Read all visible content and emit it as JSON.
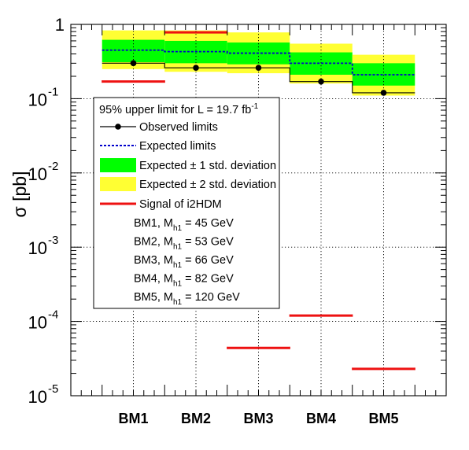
{
  "chart_data": {
    "type": "bar",
    "ylabel": "σ [pb]",
    "yscale": "log",
    "ylim": [
      1e-05,
      1
    ],
    "grid": true,
    "legend_position": "upper-left",
    "categories": [
      "BM1",
      "BM2",
      "BM3",
      "BM4",
      "BM5"
    ],
    "y_ticks": [
      {
        "base": "10",
        "exp": "-5",
        "value": 1e-05
      },
      {
        "base": "10",
        "exp": "-4",
        "value": 0.0001
      },
      {
        "base": "10",
        "exp": "-3",
        "value": 0.001
      },
      {
        "base": "10",
        "exp": "-2",
        "value": 0.01
      },
      {
        "base": "10",
        "exp": "-1",
        "value": 0.1
      },
      {
        "base": "1",
        "exp": "",
        "value": 1
      }
    ],
    "series": [
      {
        "key": "observed",
        "name": "Observed limits",
        "values": [
          0.3,
          0.26,
          0.26,
          0.17,
          0.12
        ],
        "color": "#000000"
      },
      {
        "key": "expected",
        "name": "Expected limits",
        "values": [
          0.45,
          0.43,
          0.41,
          0.3,
          0.21
        ],
        "color": "#0000cc"
      },
      {
        "key": "band1",
        "name": "Expected ± 1 std. deviation",
        "low": [
          0.31,
          0.3,
          0.29,
          0.21,
          0.15
        ],
        "high": [
          0.62,
          0.6,
          0.57,
          0.42,
          0.3
        ],
        "color": "#00ff00"
      },
      {
        "key": "band2",
        "name": "Expected ± 2 std. deviation",
        "low": [
          0.25,
          0.23,
          0.22,
          0.16,
          0.11
        ],
        "high": [
          0.83,
          0.83,
          0.78,
          0.55,
          0.39
        ],
        "color": "#ffff33"
      },
      {
        "key": "signal",
        "name": "Signal of i2HDM",
        "values": [
          0.17,
          0.78,
          4.4e-05,
          0.00012,
          2.3e-05
        ],
        "color": "#ee1111"
      }
    ],
    "legend": {
      "title_prefix": "95% upper limit for L = 19.7 fb",
      "title_sup": "-1",
      "benchmarks": [
        {
          "prefix": "BM1, M",
          "sub": "h1",
          "suffix": " = 45 GeV"
        },
        {
          "prefix": "BM2, M",
          "sub": "h1",
          "suffix": " = 53 GeV"
        },
        {
          "prefix": "BM3, M",
          "sub": "h1",
          "suffix": " = 66 GeV"
        },
        {
          "prefix": "BM4, M",
          "sub": "h1",
          "suffix": " = 82 GeV"
        },
        {
          "prefix": "BM5, M",
          "sub": "h1",
          "suffix": " = 120 GeV"
        }
      ]
    }
  }
}
